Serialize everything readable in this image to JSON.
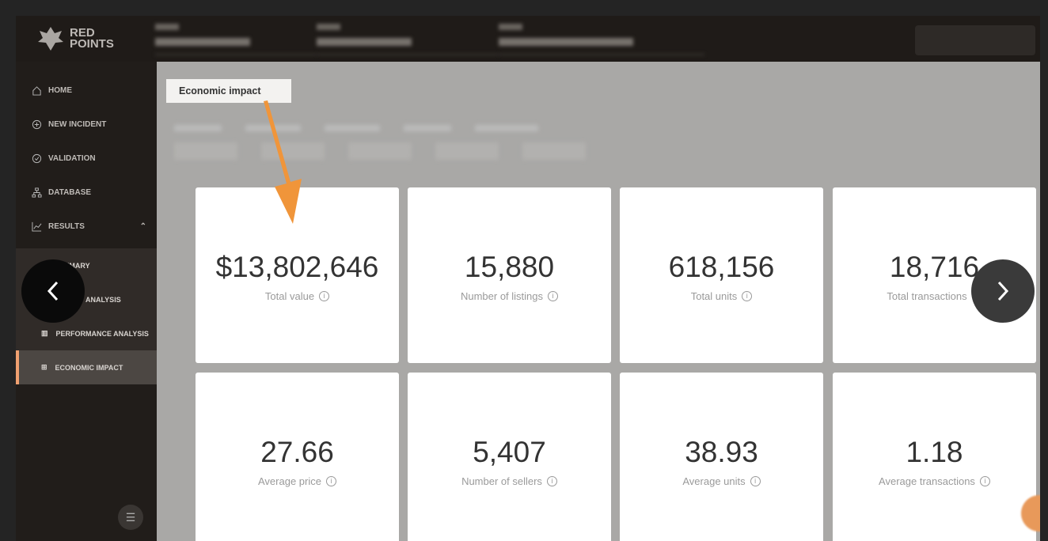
{
  "brand": {
    "line1": "RED",
    "line2": "POINTS"
  },
  "sidebar": {
    "items": [
      {
        "label": "HOME",
        "icon": "home-icon"
      },
      {
        "label": "NEW INCIDENT",
        "icon": "plus-circle-icon"
      },
      {
        "label": "VALIDATION",
        "icon": "check-circle-icon"
      },
      {
        "label": "DATABASE",
        "icon": "hierarchy-icon"
      },
      {
        "label": "RESULTS",
        "icon": "line-chart-icon"
      }
    ],
    "sub_items": [
      {
        "label": "SUMMARY"
      },
      {
        "label": "RESULT ANALYSIS"
      },
      {
        "label": "PERFORMANCE ANALYSIS"
      },
      {
        "label": "ECONOMIC IMPACT",
        "active": true
      }
    ]
  },
  "main": {
    "callout": "Economic impact",
    "cards": [
      {
        "value": "$13,802,646",
        "label": "Total value"
      },
      {
        "value": "15,880",
        "label": "Number of listings"
      },
      {
        "value": "618,156",
        "label": "Total units"
      },
      {
        "value": "18,716",
        "label": "Total transactions"
      },
      {
        "value": "27.66",
        "label": "Average price"
      },
      {
        "value": "5,407",
        "label": "Number of sellers"
      },
      {
        "value": "38.93",
        "label": "Average units"
      },
      {
        "value": "1.18",
        "label": "Average transactions"
      }
    ]
  },
  "colors": {
    "accent": "#f0953a",
    "active_border": "#f0a070"
  }
}
